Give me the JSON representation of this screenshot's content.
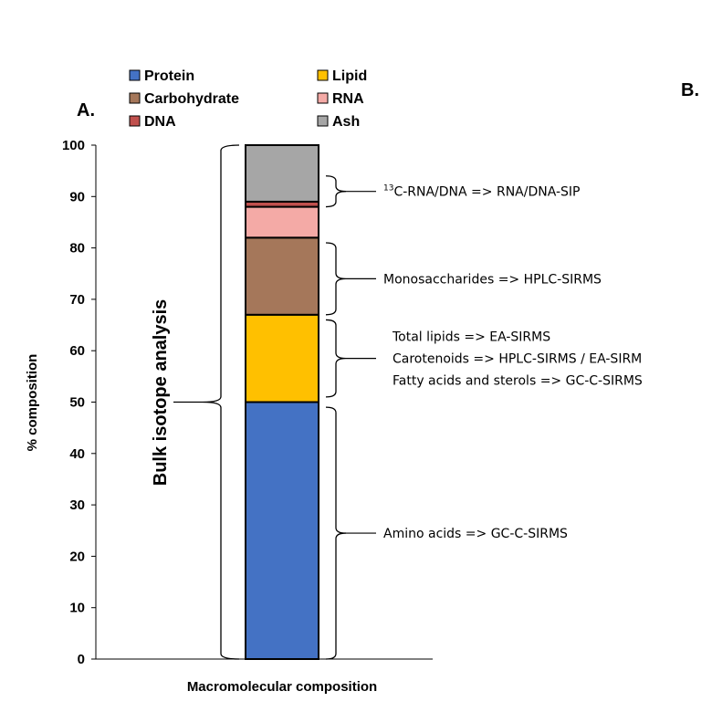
{
  "panel_labels": {
    "a": "A.",
    "b": "B."
  },
  "chart_data": {
    "type": "bar",
    "stacked": true,
    "categories": [
      "Macromolecular composition"
    ],
    "xlabel": "Macromolecular composition",
    "ylabel": "% composition",
    "ylim": [
      0,
      100
    ],
    "yticks": [
      0,
      10,
      20,
      30,
      40,
      50,
      60,
      70,
      80,
      90,
      100
    ],
    "grid": false,
    "legend_position": "top",
    "series": [
      {
        "name": "Protein",
        "values": [
          50
        ],
        "color": "#4472C4"
      },
      {
        "name": "Lipid",
        "values": [
          17
        ],
        "color": "#FFC000"
      },
      {
        "name": "Carbohydrate",
        "values": [
          15
        ],
        "color": "#A5775A"
      },
      {
        "name": "RNA",
        "values": [
          6
        ],
        "color": "#F4AAA6"
      },
      {
        "name": "DNA",
        "values": [
          1
        ],
        "color": "#C0504D"
      },
      {
        "name": "Ash",
        "values": [
          11
        ],
        "color": "#A6A6A6"
      }
    ],
    "legend_order": [
      "Protein",
      "Lipid",
      "Carbohydrate",
      "RNA",
      "DNA",
      "Ash"
    ],
    "bulk_label": "Bulk isotope analysis",
    "annotations": [
      {
        "range": [
          88,
          94
        ],
        "lines": [
          {
            "sup": "13",
            "text": "C-RNA/DNA => RNA/DNA-SIP"
          }
        ]
      },
      {
        "range": [
          67,
          81
        ],
        "lines": [
          {
            "text": "Monosaccharides => HPLC-SIRMS"
          }
        ]
      },
      {
        "range": [
          51,
          66
        ],
        "lines": [
          {
            "text": "Total lipids => EA-SIRMS"
          },
          {
            "text": "Carotenoids => HPLC-SIRMS / EA-SIRM"
          },
          {
            "text": "Fatty acids and sterols => GC-C-SIRMS"
          }
        ]
      },
      {
        "range": [
          0,
          49
        ],
        "lines": [
          {
            "text": "Amino acids => GC-C-SIRMS"
          }
        ]
      }
    ]
  }
}
